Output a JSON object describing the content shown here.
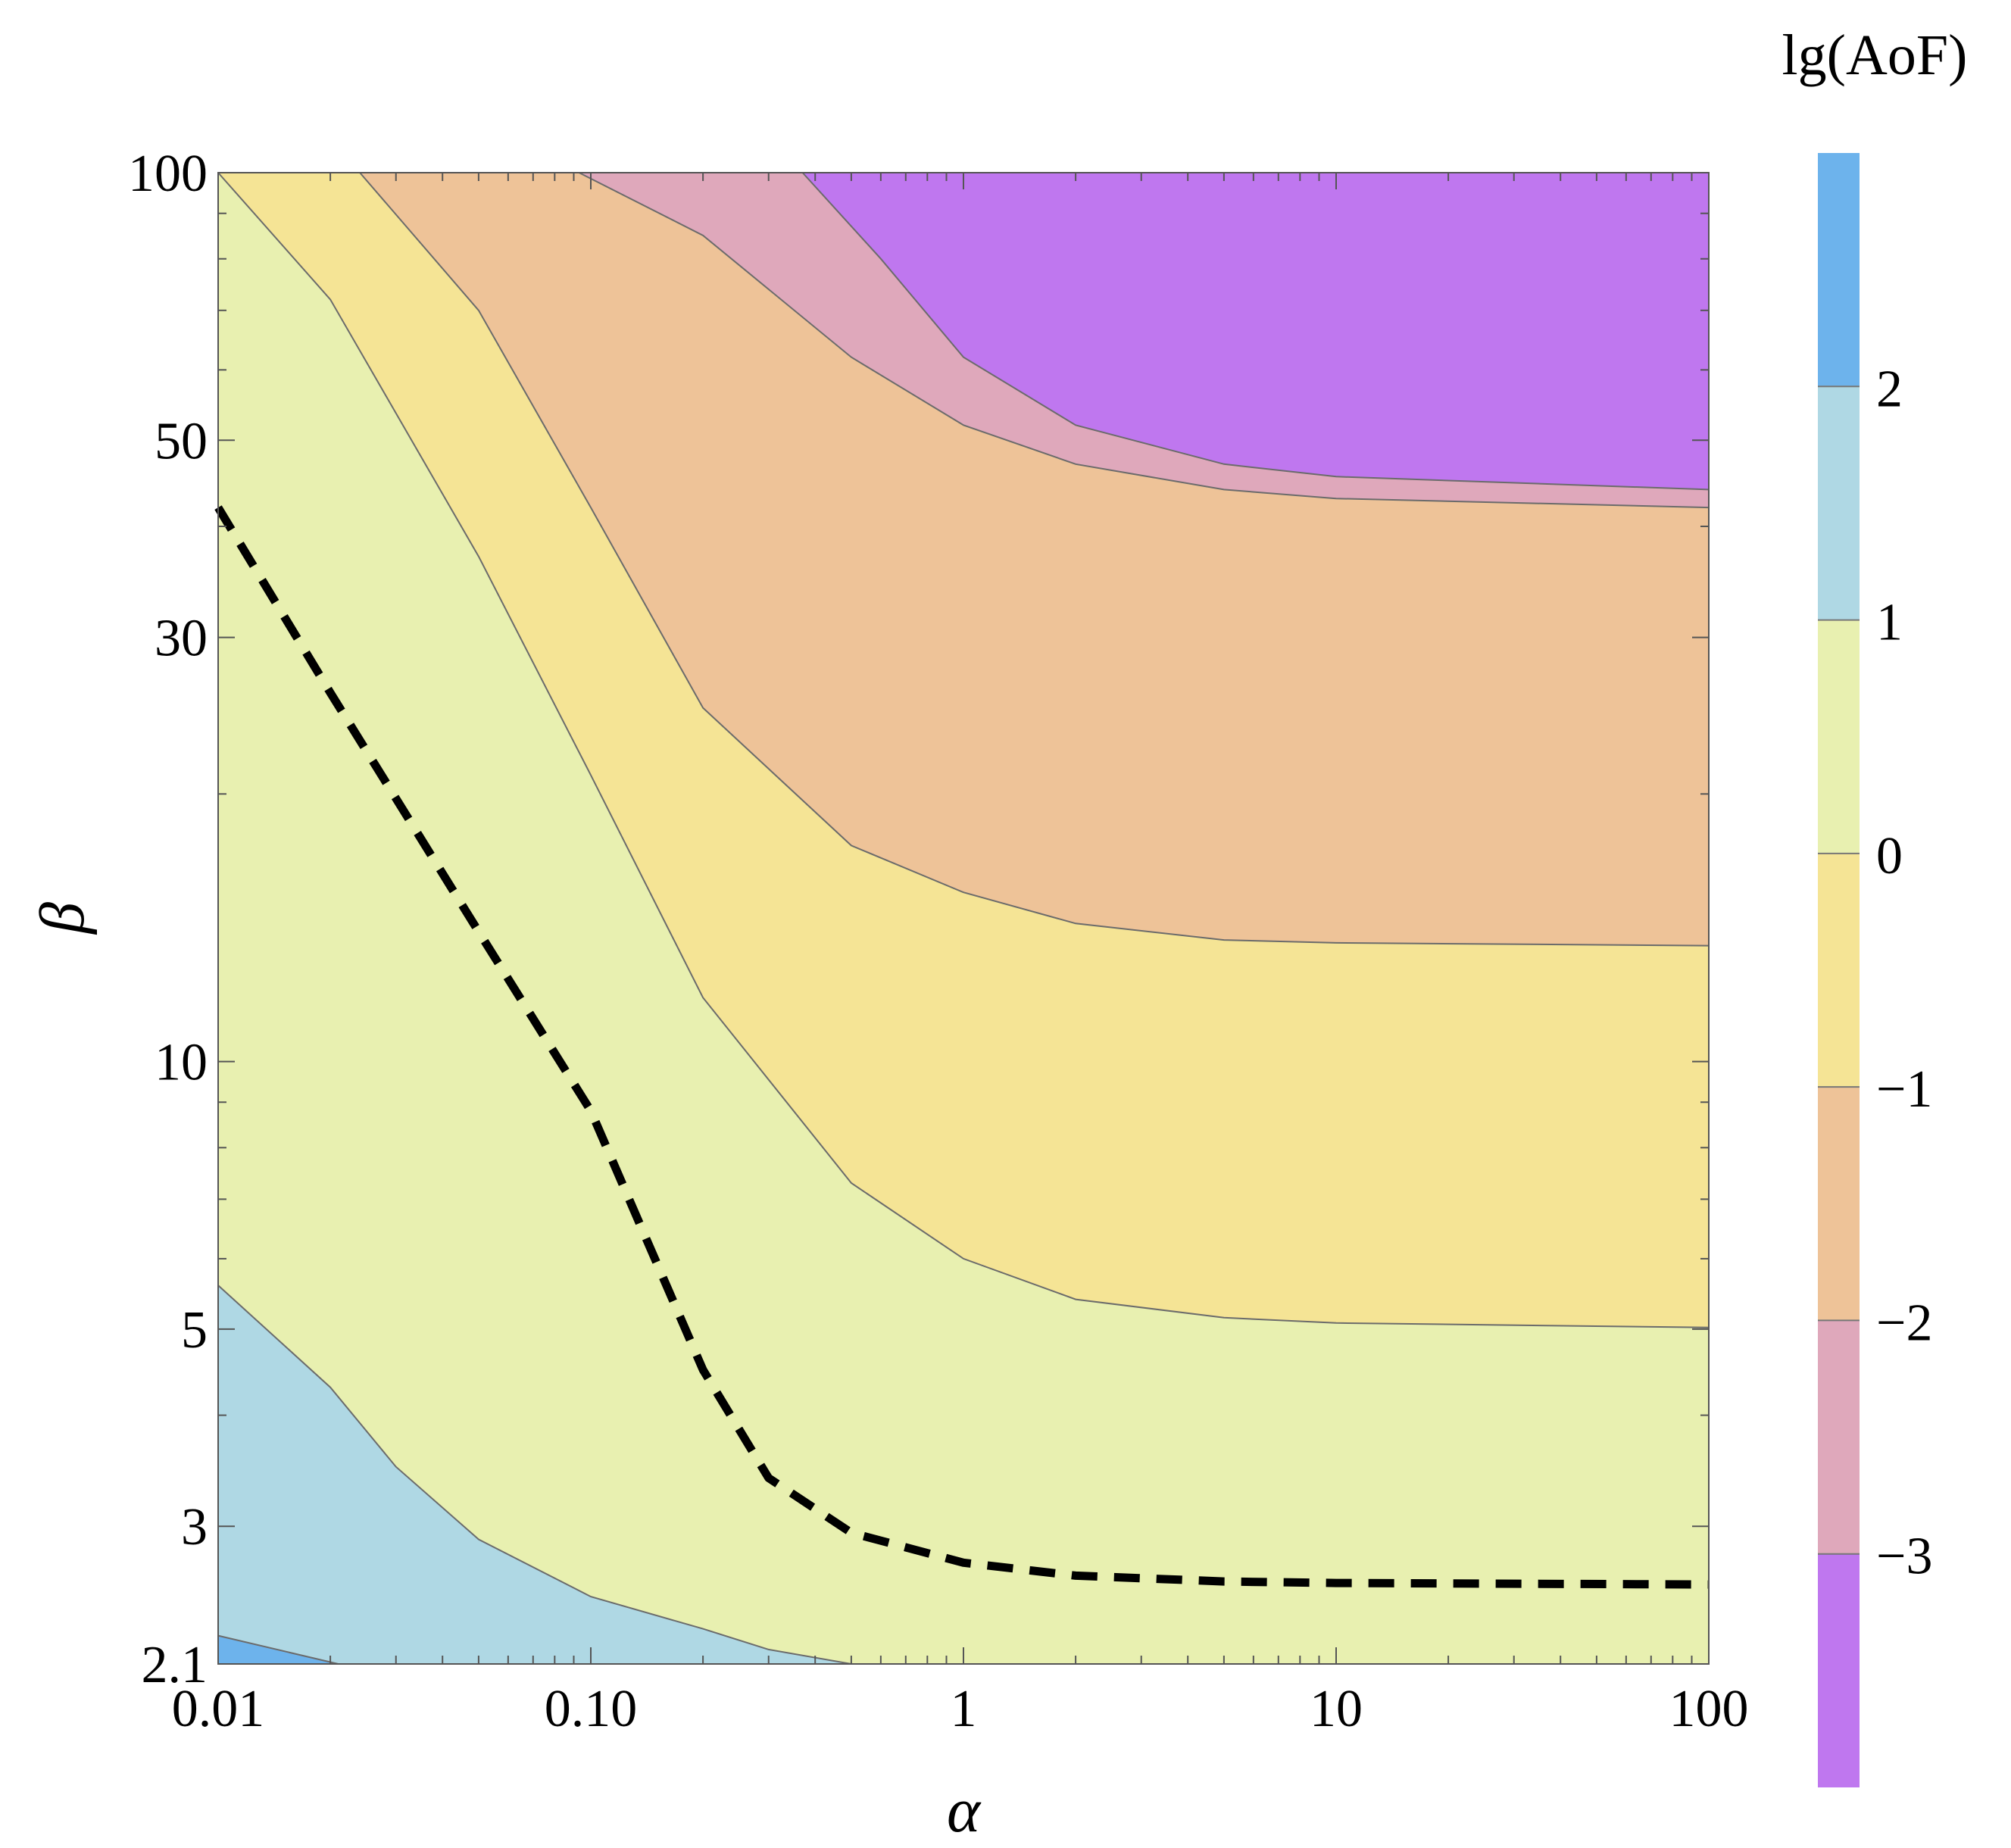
{
  "chart_data": {
    "type": "contour",
    "xlabel": "α",
    "ylabel": "β",
    "x_scale": "log",
    "y_scale": "log",
    "xlim": [
      0.01,
      100
    ],
    "ylim": [
      2.1,
      100
    ],
    "x_ticks": [
      {
        "value": 0.01,
        "label": "0.01"
      },
      {
        "value": 0.1,
        "label": "0.10"
      },
      {
        "value": 1,
        "label": "1"
      },
      {
        "value": 10,
        "label": "10"
      },
      {
        "value": 100,
        "label": "100"
      }
    ],
    "y_ticks": [
      {
        "value": 2.1,
        "label": "2.1"
      },
      {
        "value": 3,
        "label": "3"
      },
      {
        "value": 5,
        "label": "5"
      },
      {
        "value": 10,
        "label": "10"
      },
      {
        "value": 30,
        "label": "30"
      },
      {
        "value": 50,
        "label": "50"
      },
      {
        "value": 100,
        "label": "100"
      }
    ],
    "colorbar": {
      "title": "lg(AoF)",
      "ticks": [
        {
          "value": 2,
          "label": "2"
        },
        {
          "value": 1,
          "label": "1"
        },
        {
          "value": 0,
          "label": "0"
        },
        {
          "value": -1,
          "label": "−1"
        },
        {
          "value": -2,
          "label": "−2"
        },
        {
          "value": -3,
          "label": "−3"
        }
      ]
    },
    "bands": [
      {
        "range": [
          2,
          3
        ],
        "color": "#6db3ec"
      },
      {
        "range": [
          1,
          2
        ],
        "color": "#afd8e4"
      },
      {
        "range": [
          0,
          1
        ],
        "color": "#e8f0b0"
      },
      {
        "range": [
          -1,
          0
        ],
        "color": "#f5e495"
      },
      {
        "range": [
          -2,
          -1
        ],
        "color": "#eec398"
      },
      {
        "range": [
          -3,
          -2
        ],
        "color": "#dfa8bb"
      },
      {
        "range": [
          -4,
          -3
        ],
        "color": "#bf77ef"
      }
    ],
    "contours": [
      {
        "level": 2,
        "points": [
          [
            0.01,
            2.26
          ],
          [
            0.021,
            2.1
          ]
        ]
      },
      {
        "level": 1,
        "points": [
          [
            0.01,
            5.6
          ],
          [
            0.02,
            4.3
          ],
          [
            0.03,
            3.5
          ],
          [
            0.05,
            2.9
          ],
          [
            0.1,
            2.5
          ],
          [
            0.2,
            2.3
          ],
          [
            0.3,
            2.18
          ],
          [
            0.5,
            2.1
          ]
        ]
      },
      {
        "level": 0,
        "points": [
          [
            0.01,
            100
          ],
          [
            0.02,
            72
          ],
          [
            0.05,
            37
          ],
          [
            0.1,
            21
          ],
          [
            0.2,
            11.8
          ],
          [
            0.5,
            7.3
          ],
          [
            1,
            6.0
          ],
          [
            2,
            5.4
          ],
          [
            5,
            5.15
          ],
          [
            10,
            5.08
          ],
          [
            100,
            5.02
          ]
        ]
      },
      {
        "level": -1,
        "points": [
          [
            0.024,
            100
          ],
          [
            0.05,
            70
          ],
          [
            0.1,
            42
          ],
          [
            0.2,
            25
          ],
          [
            0.5,
            17.5
          ],
          [
            1,
            15.5
          ],
          [
            2,
            14.3
          ],
          [
            5,
            13.7
          ],
          [
            10,
            13.6
          ],
          [
            100,
            13.5
          ]
        ]
      },
      {
        "level": -2,
        "points": [
          [
            0.093,
            100
          ],
          [
            0.2,
            85
          ],
          [
            0.5,
            62
          ],
          [
            1,
            52
          ],
          [
            2,
            47
          ],
          [
            5,
            44
          ],
          [
            10,
            43
          ],
          [
            100,
            42
          ]
        ]
      },
      {
        "level": -3,
        "points": [
          [
            0.37,
            100
          ],
          [
            0.6,
            80
          ],
          [
            1,
            62
          ],
          [
            2,
            52
          ],
          [
            5,
            47
          ],
          [
            10,
            45.5
          ],
          [
            100,
            44
          ]
        ]
      }
    ],
    "dashed_line": {
      "points": [
        [
          0.01,
          42
        ],
        [
          0.02,
          26
        ],
        [
          0.05,
          14
        ],
        [
          0.1,
          8.8
        ],
        [
          0.2,
          4.5
        ],
        [
          0.3,
          3.4
        ],
        [
          0.5,
          2.95
        ],
        [
          1,
          2.73
        ],
        [
          2,
          2.64
        ],
        [
          5,
          2.6
        ],
        [
          10,
          2.59
        ],
        [
          100,
          2.58
        ]
      ]
    }
  }
}
